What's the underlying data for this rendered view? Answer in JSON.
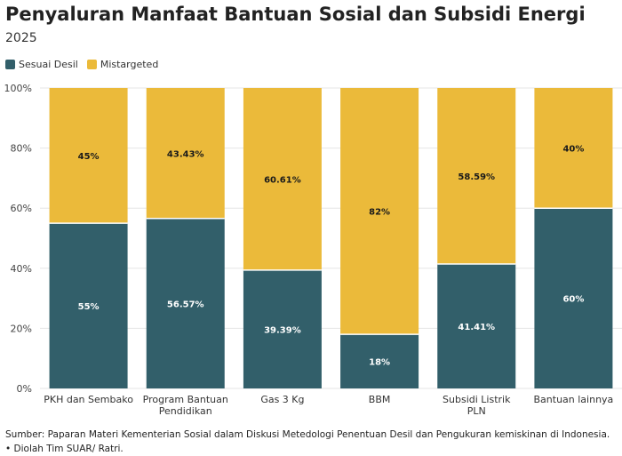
{
  "title": "Penyaluran Manfaat Bantuan Sosial dan Subsidi Energi",
  "subtitle": "2025",
  "colors": {
    "sesuai": "#325f6a",
    "mistargeted": "#ebba3a"
  },
  "chart_data": {
    "type": "bar",
    "stacked": true,
    "categories": [
      "PKH dan Sembako",
      "Program Bantuan Pendidikan",
      "Gas 3 Kg",
      "BBM",
      "Subsidi Listrik PLN",
      "Bantuan lainnya"
    ],
    "category_lines": [
      [
        "PKH dan Sembako"
      ],
      [
        "Program Bantuan",
        "Pendidikan"
      ],
      [
        "Gas 3 Kg"
      ],
      [
        "BBM"
      ],
      [
        "Subsidi Listrik",
        "PLN"
      ],
      [
        "Bantuan lainnya"
      ]
    ],
    "series": [
      {
        "name": "Sesuai Desil",
        "values": [
          55,
          56.57,
          39.39,
          18,
          41.41,
          60
        ],
        "labels": [
          "55%",
          "56.57%",
          "39.39%",
          "18%",
          "41.41%",
          "60%"
        ]
      },
      {
        "name": "Mistargeted",
        "values": [
          45,
          43.43,
          60.61,
          82,
          58.59,
          40
        ],
        "labels": [
          "45%",
          "43.43%",
          "60.61%",
          "82%",
          "58.59%",
          "40%"
        ]
      }
    ],
    "yticks": [
      "0%",
      "20%",
      "40%",
      "60%",
      "80%",
      "100%"
    ],
    "ylim": [
      0,
      100
    ],
    "grid": true,
    "legend": "top-left"
  },
  "footer": {
    "source": "Sumber: Paparan Materi Kementerian Sosial dalam Diskusi Metedologi Penentuan Desil dan Pengukuran kemiskinan di Indonesia.",
    "credit": "• Diolah Tim SUAR/ Ratri."
  }
}
